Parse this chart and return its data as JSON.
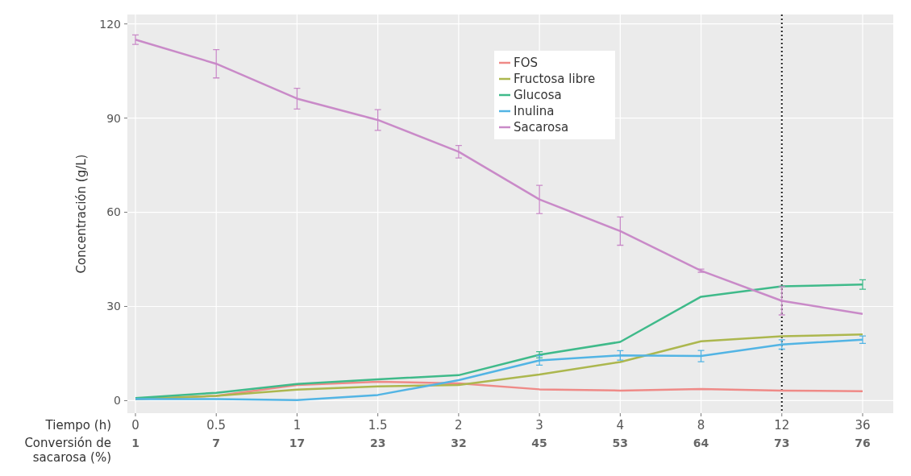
{
  "chart_data": {
    "type": "line",
    "ylabel": "Concentración (g/L)",
    "xlabel": "Tiempo (h)",
    "categories": [
      "0",
      "0.5",
      "1",
      "1.5",
      "2",
      "3",
      "4",
      "8",
      "12",
      "36"
    ],
    "ylim": [
      -4,
      123
    ],
    "yticks": [
      0,
      30,
      60,
      90,
      120
    ],
    "grid": true,
    "legend": "top",
    "series": [
      {
        "name": "FOS",
        "color": "#ef8a87",
        "values": [
          0.5,
          1.5,
          5,
          6,
          5.5,
          3.6,
          3.2,
          3.7,
          3.2,
          3.0
        ]
      },
      {
        "name": "Fructosa libre",
        "color": "#acb74e",
        "values": [
          0.5,
          1.5,
          3.5,
          4.5,
          5,
          8.3,
          12.3,
          18.9,
          20.5,
          21.1
        ]
      },
      {
        "name": "Glucosa",
        "color": "#3fba8a",
        "values": [
          0.8,
          2.5,
          5.3,
          6.8,
          8.1,
          14.6,
          18.7,
          33.1,
          36.4,
          37
        ],
        "errors": [
          null,
          null,
          null,
          null,
          null,
          1,
          null,
          null,
          null,
          1.5
        ]
      },
      {
        "name": "Inulina",
        "color": "#52b4e4",
        "values": [
          0.5,
          0.5,
          0.2,
          1.8,
          6.5,
          12.8,
          14.4,
          14.2,
          17.9,
          19.4
        ],
        "errors": [
          null,
          null,
          null,
          null,
          null,
          1.5,
          1.5,
          1.8,
          1.5,
          1.2
        ]
      },
      {
        "name": "Sacarosa",
        "color": "#c98ac8",
        "values": [
          115,
          107.3,
          96.2,
          89.4,
          79.3,
          64.1,
          54,
          41.4,
          31.8,
          27.6
        ],
        "errors": [
          1.5,
          4.5,
          3.3,
          3.3,
          2,
          4.5,
          4.5,
          0.5,
          4.5,
          null
        ]
      }
    ],
    "ref_lines": [
      {
        "axis": "x",
        "value": "12",
        "color": "#222222",
        "line_style": "dotted"
      }
    ],
    "annotations": [
      "Conversión de sacarosa (%)",
      "1",
      "7",
      "17",
      "23",
      "32",
      "45",
      "53",
      "64",
      "73",
      "76"
    ]
  }
}
